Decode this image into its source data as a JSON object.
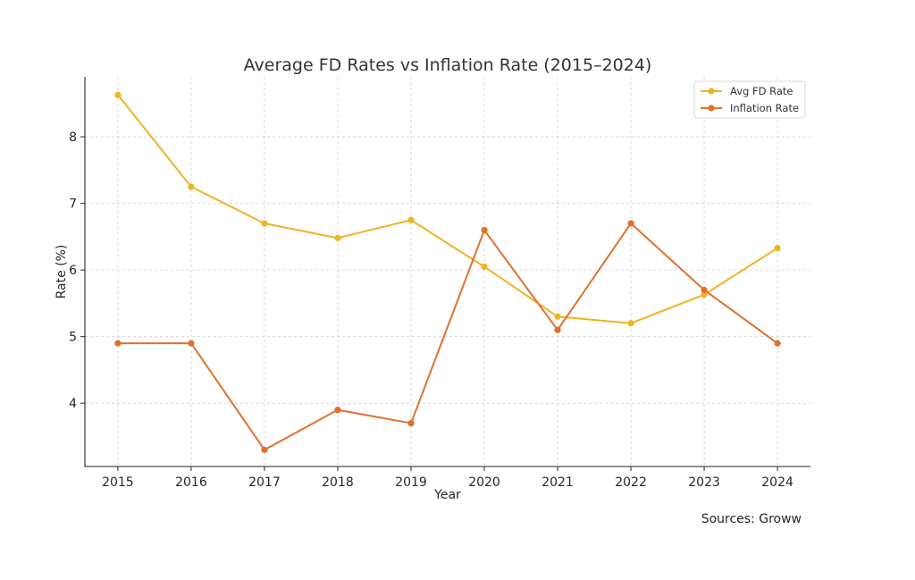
{
  "chart_data": {
    "type": "line",
    "title": "Average FD Rates vs Inflation Rate (2015–2024)",
    "xlabel": "Year",
    "ylabel": "Rate (%)",
    "x": [
      2015,
      2016,
      2017,
      2018,
      2019,
      2020,
      2021,
      2022,
      2023,
      2024
    ],
    "xlim": [
      2014.55,
      2024.45
    ],
    "ylim": [
      3.05,
      8.9
    ],
    "yticks": [
      4,
      5,
      6,
      7,
      8
    ],
    "grid": true,
    "legend_position": "top-right",
    "series": [
      {
        "name": "Avg FD Rate",
        "color": "#f0b323",
        "values": [
          8.63,
          7.25,
          6.7,
          6.48,
          6.75,
          6.05,
          5.3,
          5.2,
          5.63,
          6.33
        ]
      },
      {
        "name": "Inflation Rate",
        "color": "#e0702e",
        "values": [
          4.9,
          4.9,
          3.3,
          3.9,
          3.7,
          6.6,
          5.1,
          6.7,
          5.7,
          4.9
        ]
      }
    ]
  },
  "footer": {
    "source": "Sources: Groww"
  }
}
